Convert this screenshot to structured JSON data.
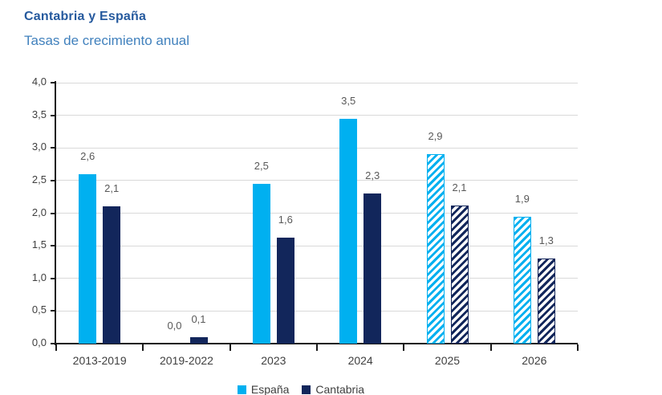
{
  "header": {
    "title": "Cantabria y España",
    "subtitle": "Tasas de crecimiento anual"
  },
  "chart_data": {
    "type": "bar",
    "title": "Cantabria y España",
    "subtitle": "Tasas de crecimiento anual",
    "categories": [
      "2013-2019",
      "2019-2022",
      "2023",
      "2024",
      "2025",
      "2026"
    ],
    "series": [
      {
        "name": "España",
        "color": "#00B0F0",
        "values": [
          2.6,
          0.0,
          2.45,
          3.45,
          2.9,
          1.95
        ],
        "labels": [
          "2,6",
          "0,0",
          "2,5",
          "3,5",
          "2,9",
          "1,9"
        ]
      },
      {
        "name": "Cantabria",
        "color": "#12265B",
        "values": [
          2.1,
          0.1,
          1.63,
          2.3,
          2.12,
          1.3
        ],
        "labels": [
          "2,1",
          "0,1",
          "1,6",
          "2,3",
          "2,1",
          "1,3"
        ]
      }
    ],
    "hatched_from_index": 4,
    "forecast_categories": [
      "2025",
      "2026"
    ],
    "ylim": [
      0,
      4
    ],
    "ytick_step": 0.5,
    "yticks": [
      "0,0",
      "0,5",
      "1,0",
      "1,5",
      "2,0",
      "2,5",
      "3,0",
      "3,5",
      "4,0"
    ],
    "grid": true,
    "legend_position": "bottom"
  },
  "legend": {
    "items": [
      {
        "label": "España",
        "color": "#00B0F0"
      },
      {
        "label": "Cantabria",
        "color": "#12265B"
      }
    ]
  },
  "style": {
    "title_color": "#265A9E",
    "subtitle_color": "#4181BD",
    "grid_color": "#D9D9D9",
    "axis_color": "#1A1A1A",
    "value_label_color": "#595959",
    "tick_label_color": "#3F3F3F"
  }
}
